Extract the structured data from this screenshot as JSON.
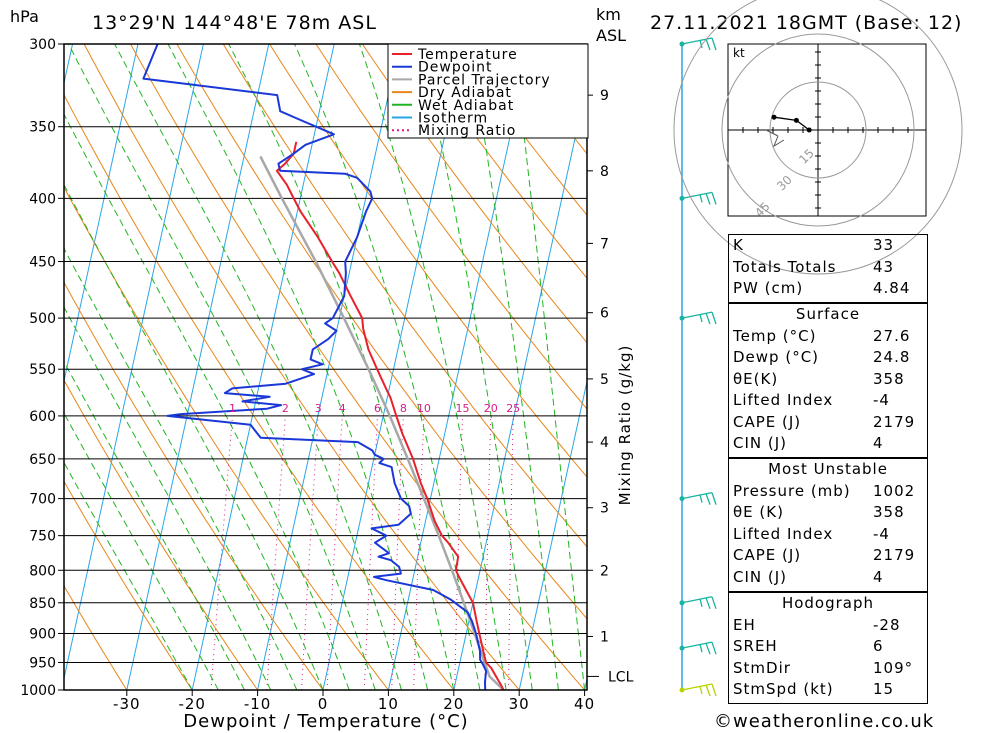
{
  "header": {
    "pressure_unit": "hPa",
    "location": "13°29'N 144°48'E 78m ASL",
    "height_unit_line1": "km",
    "height_unit_line2": "ASL",
    "datetime": "27.11.2021 18GMT (Base: 12)"
  },
  "chart_data": {
    "type": "line",
    "title": "",
    "xlabel": "Dewpoint / Temperature (°C)",
    "ylabel": "hPa",
    "secondary_ylabel": "Mixing Ratio (g/kg)",
    "xlim": [
      -40,
      40
    ],
    "ylim": [
      1000,
      300
    ],
    "skew": true,
    "log_pressure": true,
    "grid": true,
    "x_ticks": [
      -30,
      -20,
      -10,
      0,
      10,
      20,
      30,
      40
    ],
    "pressure_levels": [
      300,
      350,
      400,
      450,
      500,
      550,
      600,
      650,
      700,
      750,
      800,
      850,
      900,
      950,
      1000
    ],
    "height_km_ticks": [
      {
        "label": "1",
        "p": 905
      },
      {
        "label": "2",
        "p": 800
      },
      {
        "label": "3",
        "p": 712
      },
      {
        "label": "4",
        "p": 630
      },
      {
        "label": "5",
        "p": 560
      },
      {
        "label": "6",
        "p": 495
      },
      {
        "label": "7",
        "p": 435
      },
      {
        "label": "8",
        "p": 380
      },
      {
        "label": "9",
        "p": 330
      }
    ],
    "lcl": {
      "label": "LCL",
      "p": 975
    },
    "mixing_ratio_labels": [
      "1",
      "2",
      "3",
      "4",
      "6",
      "8",
      "10",
      "15",
      "20",
      "25"
    ],
    "legend_position": "top-right",
    "legend": [
      "Temperature",
      "Dewpoint",
      "Parcel Trajectory",
      "Dry Adiabat",
      "Wet Adiabat",
      "Isotherm",
      "Mixing Ratio"
    ],
    "colors": {
      "temperature": "#e8212b",
      "dewpoint": "#1a38d8",
      "parcel": "#a8a8a8",
      "dry_adiabat": "#e8861a",
      "wet_adiabat": "#22b422",
      "isotherm": "#2aa6e6",
      "mixing_ratio": "#d81c8c"
    },
    "series": [
      {
        "name": "Temperature",
        "points": [
          [
            1000,
            27.6
          ],
          [
            990,
            27.0
          ],
          [
            975,
            26.0
          ],
          [
            960,
            25.0
          ],
          [
            950,
            24.0
          ],
          [
            930,
            23.2
          ],
          [
            900,
            22.0
          ],
          [
            880,
            21.2
          ],
          [
            860,
            20.4
          ],
          [
            850,
            20.0
          ],
          [
            830,
            18.5
          ],
          [
            810,
            17.0
          ],
          [
            800,
            16.3
          ],
          [
            780,
            16.2
          ],
          [
            770,
            15.2
          ],
          [
            760,
            14.2
          ],
          [
            750,
            13.0
          ],
          [
            730,
            11.4
          ],
          [
            700,
            9.5
          ],
          [
            680,
            8.0
          ],
          [
            650,
            6.0
          ],
          [
            620,
            3.5
          ],
          [
            600,
            2.0
          ],
          [
            580,
            0.5
          ],
          [
            570,
            -0.5
          ],
          [
            560,
            -1.5
          ],
          [
            550,
            -2.5
          ],
          [
            530,
            -4.5
          ],
          [
            510,
            -6.0
          ],
          [
            500,
            -6.5
          ],
          [
            480,
            -9.0
          ],
          [
            460,
            -11.5
          ],
          [
            450,
            -13.0
          ],
          [
            430,
            -16.0
          ],
          [
            410,
            -19.5
          ],
          [
            400,
            -21.0
          ],
          [
            390,
            -22.5
          ],
          [
            385,
            -23.5
          ],
          [
            380,
            -24.5
          ],
          [
            375,
            -23.5
          ],
          [
            368,
            -22.5
          ],
          [
            360,
            -22.5
          ]
        ]
      },
      {
        "name": "Dewpoint",
        "points": [
          [
            1000,
            24.8
          ],
          [
            985,
            24.5
          ],
          [
            965,
            24.3
          ],
          [
            955,
            23.7
          ],
          [
            945,
            23.0
          ],
          [
            930,
            22.7
          ],
          [
            900,
            21.5
          ],
          [
            880,
            20.5
          ],
          [
            865,
            19.5
          ],
          [
            855,
            18.0
          ],
          [
            845,
            16.5
          ],
          [
            830,
            13.5
          ],
          [
            815,
            6.0
          ],
          [
            810,
            4.0
          ],
          [
            805,
            8.0
          ],
          [
            795,
            7.5
          ],
          [
            785,
            6.0
          ],
          [
            780,
            4.0
          ],
          [
            775,
            5.5
          ],
          [
            760,
            3.0
          ],
          [
            750,
            4.5
          ],
          [
            740,
            2.0
          ],
          [
            735,
            6.0
          ],
          [
            730,
            6.5
          ],
          [
            720,
            7.5
          ],
          [
            710,
            7.0
          ],
          [
            700,
            5.5
          ],
          [
            680,
            4.0
          ],
          [
            660,
            3.0
          ],
          [
            655,
            1.0
          ],
          [
            650,
            1.5
          ],
          [
            645,
            0.0
          ],
          [
            640,
            -0.5
          ],
          [
            630,
            -3.0
          ],
          [
            625,
            -18.0
          ],
          [
            610,
            -20.0
          ],
          [
            600,
            -33.0
          ],
          [
            598,
            -31.0
          ],
          [
            592,
            -18.0
          ],
          [
            588,
            -16.0
          ],
          [
            584,
            -22.0
          ],
          [
            579,
            -18.0
          ],
          [
            575,
            -25.0
          ],
          [
            570,
            -24.0
          ],
          [
            565,
            -16.0
          ],
          [
            560,
            -14.0
          ],
          [
            555,
            -12.0
          ],
          [
            550,
            -14.0
          ],
          [
            545,
            -11.0
          ],
          [
            540,
            -13.0
          ],
          [
            530,
            -13.0
          ],
          [
            520,
            -11.0
          ],
          [
            512,
            -10.0
          ],
          [
            505,
            -12.0
          ],
          [
            500,
            -11.0
          ],
          [
            480,
            -10.0
          ],
          [
            460,
            -10.5
          ],
          [
            450,
            -11.0
          ],
          [
            430,
            -10.0
          ],
          [
            410,
            -9.5
          ],
          [
            400,
            -9.0
          ],
          [
            395,
            -9.5
          ],
          [
            385,
            -12.0
          ],
          [
            382,
            -14.0
          ],
          [
            380,
            -24.0
          ],
          [
            375,
            -24.5
          ],
          [
            368,
            -22.5
          ],
          [
            362,
            -21.0
          ],
          [
            355,
            -17.0
          ],
          [
            345,
            -23.0
          ],
          [
            340,
            -26.0
          ],
          [
            330,
            -27.0
          ],
          [
            320,
            -48.0
          ],
          [
            300,
            -47.0
          ]
        ]
      },
      {
        "name": "Parcel Trajectory",
        "points": [
          [
            1000,
            27.6
          ],
          [
            975,
            25.0
          ],
          [
            950,
            23.8
          ],
          [
            900,
            21.3
          ],
          [
            850,
            18.6
          ],
          [
            800,
            15.7
          ],
          [
            750,
            12.5
          ],
          [
            700,
            9.0
          ],
          [
            650,
            5.2
          ],
          [
            600,
            1.0
          ],
          [
            550,
            -3.8
          ],
          [
            500,
            -9.3
          ],
          [
            450,
            -15.5
          ],
          [
            400,
            -22.8
          ],
          [
            370,
            -27.5
          ]
        ]
      }
    ],
    "hodograph": {
      "unit": "kt",
      "ring_labels": [
        "15",
        "30",
        "45"
      ],
      "points": [
        [
          1,
          0
        ],
        [
          -3,
          3
        ],
        [
          -10,
          4
        ]
      ]
    },
    "wind_profile": [
      {
        "p": 1000,
        "color": "#b8d200"
      },
      {
        "p": 925,
        "color": "#1ab4a0"
      },
      {
        "p": 850,
        "color": "#1ab4a0"
      },
      {
        "p": 700,
        "color": "#1ab4a0"
      },
      {
        "p": 500,
        "color": "#1ab4a0"
      },
      {
        "p": 400,
        "color": "#1ab4a0"
      },
      {
        "p": 300,
        "color": "#1ab4a0"
      }
    ]
  },
  "indices": {
    "general": [
      {
        "label": "K",
        "value": "33"
      },
      {
        "label": "Totals Totals",
        "value": "43"
      },
      {
        "label": "PW (cm)",
        "value": "4.84"
      }
    ],
    "surface": {
      "title": "Surface",
      "rows": [
        {
          "label": "Temp (°C)",
          "value": "27.6"
        },
        {
          "label": "Dewp (°C)",
          "value": "24.8"
        },
        {
          "label": "θE(K)",
          "value": "358"
        },
        {
          "label": "Lifted Index",
          "value": "-4"
        },
        {
          "label": "CAPE (J)",
          "value": "2179"
        },
        {
          "label": "CIN (J)",
          "value": "4"
        }
      ]
    },
    "most_unstable": {
      "title": "Most Unstable",
      "rows": [
        {
          "label": "Pressure (mb)",
          "value": "1002"
        },
        {
          "label": "θE (K)",
          "value": "358"
        },
        {
          "label": "Lifted Index",
          "value": "-4"
        },
        {
          "label": "CAPE (J)",
          "value": "2179"
        },
        {
          "label": "CIN (J)",
          "value": "4"
        }
      ]
    },
    "hodograph": {
      "title": "Hodograph",
      "rows": [
        {
          "label": "EH",
          "value": "-28"
        },
        {
          "label": "SREH",
          "value": "6"
        },
        {
          "label": "StmDir",
          "value": "109°"
        },
        {
          "label": "StmSpd (kt)",
          "value": "15"
        }
      ]
    }
  },
  "footer": {
    "copyright": "©weatheronline.co.uk"
  }
}
